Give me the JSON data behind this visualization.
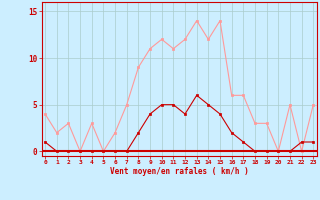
{
  "hours": [
    0,
    1,
    2,
    3,
    4,
    5,
    6,
    7,
    8,
    9,
    10,
    11,
    12,
    13,
    14,
    15,
    16,
    17,
    18,
    19,
    20,
    21,
    22,
    23
  ],
  "vent_moyen": [
    1,
    0,
    0,
    0,
    0,
    0,
    0,
    0,
    2,
    4,
    5,
    5,
    4,
    6,
    5,
    4,
    2,
    1,
    0,
    0,
    0,
    0,
    1,
    1
  ],
  "rafales": [
    4,
    2,
    3,
    0,
    3,
    0,
    2,
    5,
    9,
    11,
    12,
    11,
    12,
    14,
    12,
    14,
    6,
    6,
    3,
    3,
    0,
    5,
    0,
    5
  ],
  "bg_color": "#cceeff",
  "grid_color": "#aacccc",
  "line_moyen_color": "#cc0000",
  "line_rafales_color": "#ff9999",
  "xlabel": "Vent moyen/en rafales ( km/h )",
  "xlabel_color": "#cc0000",
  "tick_color": "#cc0000",
  "ylim": [
    -0.5,
    16
  ],
  "yticks": [
    0,
    5,
    10,
    15
  ],
  "xlim": [
    -0.3,
    23.3
  ],
  "figsize": [
    3.2,
    2.0
  ],
  "dpi": 100
}
